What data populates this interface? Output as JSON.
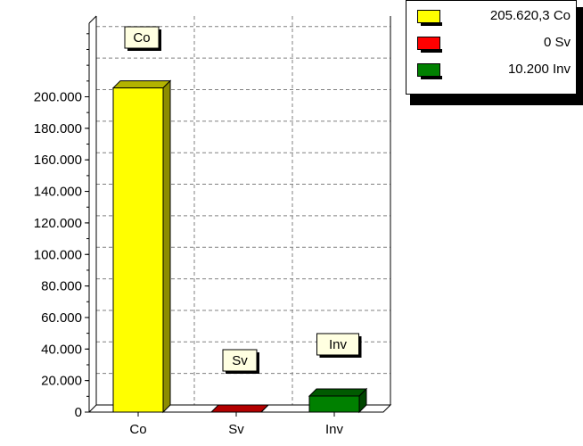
{
  "chart_data": {
    "type": "bar",
    "categories": [
      "Co",
      "Sv",
      "Inv"
    ],
    "values": [
      205620.3,
      0,
      10200
    ],
    "ylim": [
      0,
      200000
    ],
    "y_ticks": [
      "0",
      "20.000",
      "40.000",
      "60.000",
      "80.000",
      "100.000",
      "120.000",
      "140.000",
      "160.000",
      "180.000",
      "200.000"
    ],
    "bar_labels": [
      "Co",
      "Sv",
      "Inv"
    ],
    "colors": [
      "#ffff00",
      "#ff0000",
      "#008000"
    ],
    "grid": true,
    "legend_position": "top-right",
    "legend": [
      {
        "text": "205.620,3 Co",
        "color": "#ffff00"
      },
      {
        "text": "0 Sv",
        "color": "#ff0000"
      },
      {
        "text": "10.200 Inv",
        "color": "#008000"
      }
    ]
  }
}
